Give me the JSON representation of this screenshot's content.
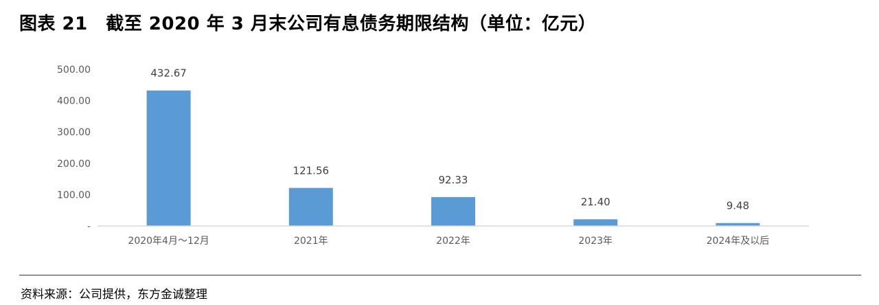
{
  "title": "图表 21　截至 2020 年 3 月末公司有息债务期限结构（单位：亿元）",
  "source": "资料来源：公司提供，东方金诚整理",
  "chart_data": {
    "type": "bar",
    "categories": [
      "2020年4月～12月",
      "2021年",
      "2022年",
      "2023年",
      "2024年及以后"
    ],
    "values": [
      432.67,
      121.56,
      92.33,
      21.4,
      9.48
    ],
    "data_labels": [
      "432.67",
      "121.56",
      "92.33",
      "21.40",
      "9.48"
    ],
    "yticks": [
      "-",
      "100.00",
      "200.00",
      "300.00",
      "400.00",
      "500.00"
    ],
    "ytick_values": [
      0,
      100,
      200,
      300,
      400,
      500
    ],
    "ylim": [
      0,
      500
    ],
    "grid": false,
    "legend": "none",
    "bar_color": "#5B9BD5",
    "axis_color": "#D9D9D9"
  }
}
